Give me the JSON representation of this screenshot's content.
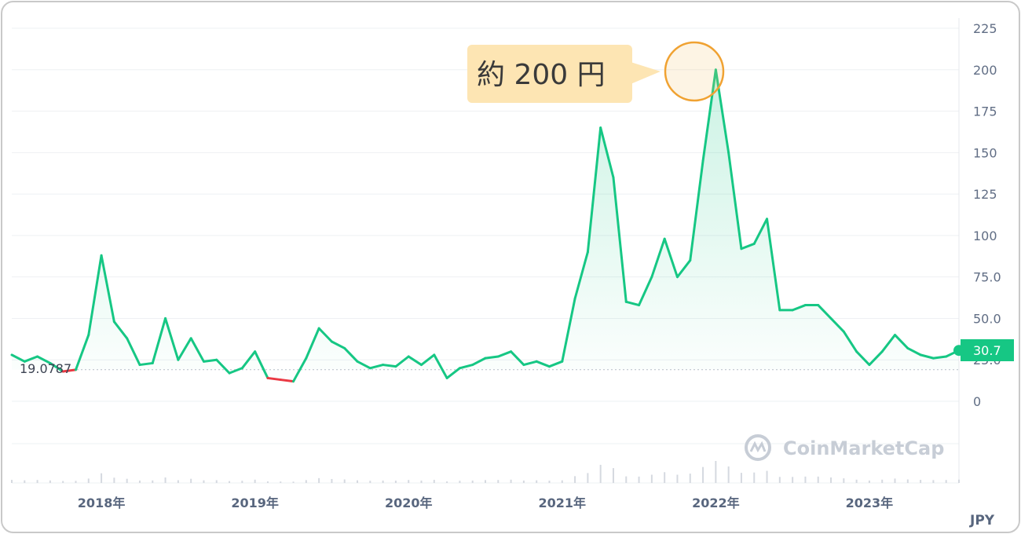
{
  "chart_data": {
    "type": "area",
    "currency": "JPY",
    "y_ticks": [
      "225",
      "200",
      "175",
      "150",
      "125",
      "100",
      "75.0",
      "50.0",
      "25.0",
      "0"
    ],
    "ylim": [
      0,
      225
    ],
    "x_ticks": [
      "2018年",
      "2019年",
      "2020年",
      "2021年",
      "2022年",
      "2023年"
    ],
    "baseline_value": 19.0787,
    "baseline_label": "19.0787",
    "current_value": 30.7,
    "current_label": "30.7",
    "annotation": "約 200 円",
    "peak_value": 200,
    "series": [
      {
        "x": [
          "2017-06",
          "2017-07",
          "2017-08",
          "2017-09",
          "2017-10",
          "2017-11",
          "2017-12",
          "2018-01",
          "2018-02",
          "2018-03",
          "2018-04",
          "2018-05",
          "2018-06",
          "2018-07",
          "2018-08",
          "2018-09",
          "2018-10",
          "2018-11",
          "2018-12",
          "2019-01",
          "2019-02",
          "2019-03",
          "2019-04",
          "2019-05",
          "2019-06",
          "2019-07",
          "2019-08",
          "2019-09",
          "2019-10",
          "2019-11",
          "2019-12",
          "2020-01",
          "2020-02",
          "2020-03",
          "2020-04",
          "2020-05",
          "2020-06",
          "2020-07",
          "2020-08",
          "2020-09",
          "2020-10",
          "2020-11",
          "2020-12",
          "2021-01",
          "2021-02",
          "2021-03",
          "2021-04",
          "2021-05",
          "2021-06",
          "2021-07",
          "2021-08",
          "2021-09",
          "2021-10",
          "2021-11",
          "2021-12",
          "2022-01",
          "2022-02",
          "2022-03",
          "2022-04",
          "2022-05",
          "2022-06",
          "2022-07",
          "2022-08",
          "2022-09",
          "2022-10",
          "2022-11",
          "2022-12",
          "2023-01",
          "2023-02",
          "2023-03",
          "2023-04",
          "2023-05",
          "2023-06",
          "2023-07",
          "2023-08"
        ],
        "values": [
          28,
          24,
          27,
          23,
          18,
          19,
          40,
          88,
          48,
          38,
          22,
          23,
          50,
          25,
          38,
          24,
          25,
          17,
          20,
          30,
          14,
          13,
          12,
          26,
          44,
          36,
          32,
          24,
          20,
          22,
          21,
          27,
          22,
          28,
          14,
          20,
          22,
          26,
          27,
          30,
          22,
          24,
          21,
          24,
          62,
          90,
          165,
          135,
          60,
          58,
          75,
          98,
          75,
          85,
          145,
          200,
          150,
          92,
          95,
          110,
          55,
          55,
          58,
          58,
          50,
          42,
          30,
          22,
          30,
          40,
          32,
          28,
          26,
          27,
          30.7
        ]
      }
    ]
  }
}
